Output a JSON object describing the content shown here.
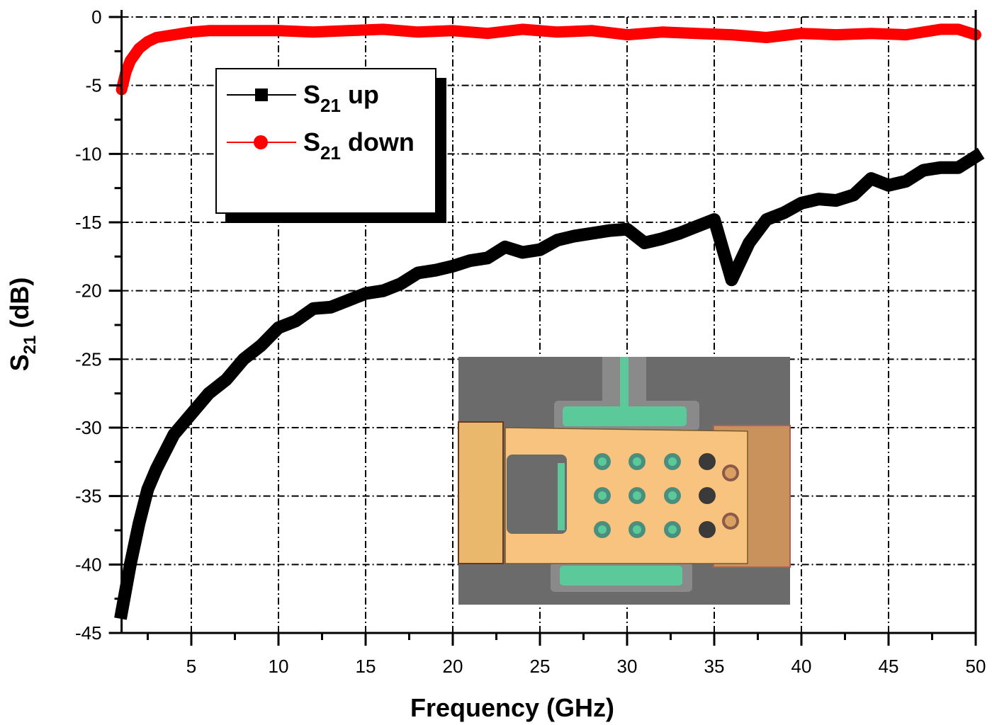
{
  "chart_data": {
    "type": "line",
    "title": "",
    "xlabel": "Frequency (GHz)",
    "ylabel": "S21 (dB)",
    "ylabel_parts": {
      "main": "S",
      "sub": "21",
      "rest": " (dB)"
    },
    "xlim": [
      1,
      50
    ],
    "ylim": [
      -45,
      0
    ],
    "x_ticks": [
      5,
      10,
      15,
      20,
      25,
      30,
      35,
      40,
      45,
      50
    ],
    "y_ticks": [
      0,
      -5,
      -10,
      -15,
      -20,
      -25,
      -30,
      -35,
      -40,
      -45
    ],
    "grid": true,
    "grid_style": "dash-dot",
    "legend_position": "upper-left",
    "series": [
      {
        "name": "S21 up",
        "label_main": "S",
        "label_sub": "21",
        "label_rest": " up",
        "color": "#000000",
        "marker": "square",
        "x": [
          1.0,
          1.5,
          2.0,
          2.5,
          3.0,
          4.0,
          5.0,
          6.0,
          7.0,
          8.0,
          9.0,
          10.0,
          11.0,
          12.0,
          13.0,
          14.0,
          15.0,
          16.0,
          17.0,
          18.0,
          19.0,
          20.0,
          21.0,
          22.0,
          23.0,
          24.0,
          25.0,
          26.0,
          27.0,
          28.0,
          29.0,
          30.0,
          31.0,
          32.0,
          33.0,
          34.0,
          35.0,
          35.5,
          36.0,
          37.0,
          38.0,
          39.0,
          40.0,
          41.0,
          42.0,
          43.0,
          44.0,
          45.0,
          46.0,
          47.0,
          48.0,
          49.0,
          50.0
        ],
        "values": [
          -43.5,
          -40.0,
          -37.0,
          -34.5,
          -33.0,
          -30.5,
          -29.0,
          -27.5,
          -26.5,
          -25.0,
          -24.0,
          -22.7,
          -22.2,
          -21.3,
          -21.2,
          -20.7,
          -20.2,
          -20.0,
          -19.5,
          -18.7,
          -18.5,
          -18.2,
          -17.8,
          -17.6,
          -16.8,
          -17.2,
          -17.0,
          -16.3,
          -16.0,
          -15.8,
          -15.6,
          -15.5,
          -16.5,
          -16.2,
          -15.8,
          -15.3,
          -14.8,
          -17.0,
          -19.2,
          -16.5,
          -14.8,
          -14.3,
          -13.6,
          -13.3,
          -13.4,
          -13.0,
          -11.8,
          -12.3,
          -12.0,
          -11.2,
          -11.0,
          -11.0,
          -10.2
        ]
      },
      {
        "name": "S21 down",
        "label_main": "S",
        "label_sub": "21",
        "label_rest": " down",
        "color": "#ff0000",
        "marker": "circle",
        "x": [
          1.0,
          1.25,
          1.5,
          2.0,
          2.5,
          3.0,
          4.0,
          5.0,
          6.0,
          8.0,
          10.0,
          12.0,
          14.0,
          16.0,
          18.0,
          20.0,
          22.0,
          24.0,
          26.0,
          28.0,
          30.0,
          32.0,
          34.0,
          36.0,
          38.0,
          40.0,
          42.0,
          44.0,
          46.0,
          48.0,
          49.0,
          50.0
        ],
        "values": [
          -5.3,
          -4.0,
          -3.2,
          -2.3,
          -1.8,
          -1.5,
          -1.3,
          -1.1,
          -1.0,
          -1.0,
          -1.0,
          -1.1,
          -1.0,
          -0.9,
          -1.1,
          -1.0,
          -1.2,
          -0.9,
          -1.1,
          -1.0,
          -1.3,
          -1.1,
          -1.2,
          -1.3,
          -1.5,
          -1.2,
          -1.3,
          -1.2,
          -1.3,
          -0.9,
          -0.9,
          -1.3
        ]
      }
    ],
    "inset": {
      "description": "Micrograph of RF MEMS switch device (top view)",
      "colors": {
        "background": "#6b6b6b",
        "trench": "#8a8a8a",
        "electrode": "#5cc99a",
        "beam": "#f7c37f",
        "anchor_pad": "#e9b86c",
        "right_pad": "#c9925c",
        "hole_dark": "#3a3a3a"
      }
    }
  },
  "legend": {
    "items": [
      {
        "main": "S",
        "sub": "21",
        "rest": " up",
        "color": "#000000"
      },
      {
        "main": "S",
        "sub": "21",
        "rest": " down",
        "color": "#ff0000"
      }
    ]
  }
}
